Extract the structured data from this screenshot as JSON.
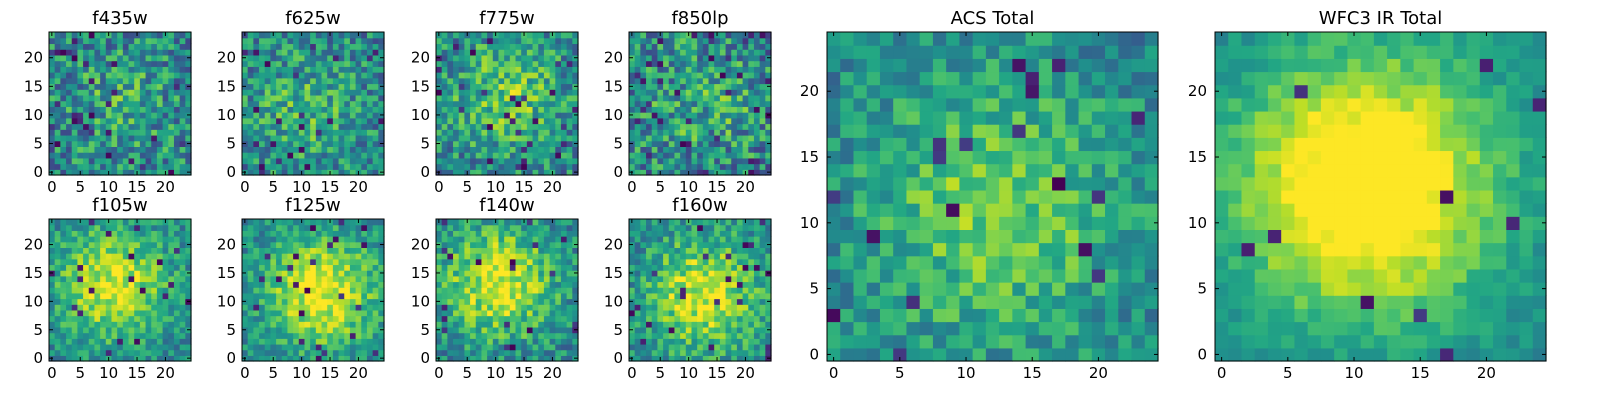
{
  "chart_data": [
    {
      "type": "heatmap",
      "title": "f435w",
      "colormap": "viridis",
      "grid_size": [
        25,
        25
      ],
      "xlim": [
        0,
        24
      ],
      "ylim": [
        0,
        24
      ],
      "xticks": [
        "0",
        "5",
        "10",
        "15",
        "20"
      ],
      "yticks": [
        "0",
        "5",
        "10",
        "15",
        "20"
      ],
      "seed": 11,
      "signal": 0.15,
      "noise": 0.55,
      "dark_fraction": 0.04
    },
    {
      "type": "heatmap",
      "title": "f625w",
      "colormap": "viridis",
      "grid_size": [
        25,
        25
      ],
      "xlim": [
        0,
        24
      ],
      "ylim": [
        0,
        24
      ],
      "xticks": [
        "0",
        "5",
        "10",
        "15",
        "20"
      ],
      "yticks": [
        "0",
        "5",
        "10",
        "15",
        "20"
      ],
      "seed": 23,
      "signal": 0.2,
      "noise": 0.5,
      "dark_fraction": 0.03
    },
    {
      "type": "heatmap",
      "title": "f775w",
      "colormap": "viridis",
      "grid_size": [
        25,
        25
      ],
      "xlim": [
        0,
        24
      ],
      "ylim": [
        0,
        24
      ],
      "xticks": [
        "0",
        "5",
        "10",
        "15",
        "20"
      ],
      "yticks": [
        "0",
        "5",
        "10",
        "15",
        "20"
      ],
      "seed": 37,
      "signal": 0.3,
      "noise": 0.5,
      "dark_fraction": 0.04
    },
    {
      "type": "heatmap",
      "title": "f850lp",
      "colormap": "viridis",
      "grid_size": [
        25,
        25
      ],
      "xlim": [
        0,
        24
      ],
      "ylim": [
        0,
        24
      ],
      "xticks": [
        "0",
        "5",
        "10",
        "15",
        "20"
      ],
      "yticks": [
        "0",
        "5",
        "10",
        "15",
        "20"
      ],
      "seed": 41,
      "signal": 0.15,
      "noise": 0.6,
      "dark_fraction": 0.05
    },
    {
      "type": "heatmap",
      "title": "f105w",
      "colormap": "viridis",
      "grid_size": [
        25,
        25
      ],
      "xlim": [
        0,
        24
      ],
      "ylim": [
        0,
        24
      ],
      "xticks": [
        "0",
        "5",
        "10",
        "15",
        "20"
      ],
      "yticks": [
        "0",
        "5",
        "10",
        "15",
        "20"
      ],
      "seed": 53,
      "signal": 0.5,
      "noise": 0.35,
      "dark_fraction": 0.03
    },
    {
      "type": "heatmap",
      "title": "f125w",
      "colormap": "viridis",
      "grid_size": [
        25,
        25
      ],
      "xlim": [
        0,
        24
      ],
      "ylim": [
        0,
        24
      ],
      "xticks": [
        "0",
        "5",
        "10",
        "15",
        "20"
      ],
      "yticks": [
        "0",
        "5",
        "10",
        "15",
        "20"
      ],
      "seed": 67,
      "signal": 0.55,
      "noise": 0.35,
      "dark_fraction": 0.04
    },
    {
      "type": "heatmap",
      "title": "f140w",
      "colormap": "viridis",
      "grid_size": [
        25,
        25
      ],
      "xlim": [
        0,
        24
      ],
      "ylim": [
        0,
        24
      ],
      "xticks": [
        "0",
        "5",
        "10",
        "15",
        "20"
      ],
      "yticks": [
        "0",
        "5",
        "10",
        "15",
        "20"
      ],
      "seed": 79,
      "signal": 0.5,
      "noise": 0.4,
      "dark_fraction": 0.04
    },
    {
      "type": "heatmap",
      "title": "f160w",
      "colormap": "viridis",
      "grid_size": [
        25,
        25
      ],
      "xlim": [
        0,
        24
      ],
      "ylim": [
        0,
        24
      ],
      "xticks": [
        "0",
        "5",
        "10",
        "15",
        "20"
      ],
      "yticks": [
        "0",
        "5",
        "10",
        "15",
        "20"
      ],
      "seed": 83,
      "signal": 0.5,
      "noise": 0.4,
      "dark_fraction": 0.04
    },
    {
      "type": "heatmap",
      "title": "ACS Total",
      "colormap": "viridis",
      "grid_size": [
        25,
        25
      ],
      "xlim": [
        0,
        24
      ],
      "ylim": [
        0,
        24
      ],
      "xticks": [
        "0",
        "5",
        "10",
        "15",
        "20"
      ],
      "yticks": [
        "0",
        "5",
        "10",
        "15",
        "20"
      ],
      "seed": 97,
      "signal": 0.35,
      "noise": 0.35,
      "dark_fraction": 0.03
    },
    {
      "type": "heatmap",
      "title": "WFC3 IR Total",
      "colormap": "viridis",
      "grid_size": [
        25,
        25
      ],
      "xlim": [
        0,
        24
      ],
      "ylim": [
        0,
        24
      ],
      "xticks": [
        "0",
        "5",
        "10",
        "15",
        "20"
      ],
      "yticks": [
        "0",
        "5",
        "10",
        "15",
        "20"
      ],
      "seed": 101,
      "signal": 0.75,
      "noise": 0.18,
      "dark_fraction": 0.02
    }
  ]
}
